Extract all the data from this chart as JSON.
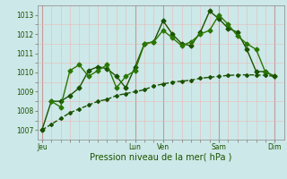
{
  "title": "",
  "xlabel": "Pression niveau de la mer( hPa )",
  "ylim": [
    1006.5,
    1013.5
  ],
  "yticks": [
    1007,
    1008,
    1009,
    1010,
    1011,
    1012,
    1013
  ],
  "bg_color": "#cde8e8",
  "grid_color_minor": "#e8b8b8",
  "grid_color_major": "#c89898",
  "line_color_dark": "#1a5200",
  "line_color_mid": "#2a7700",
  "xtick_labels": [
    "Jeu",
    "Lun",
    "Ven",
    "Sam",
    "Dim"
  ],
  "xtick_positions": [
    0,
    10,
    13,
    19,
    25
  ],
  "xlim": [
    -0.5,
    26.0
  ],
  "x_major_lines": [
    0,
    10,
    13,
    19,
    25
  ],
  "lines": [
    {
      "x": [
        0,
        1,
        2,
        3,
        4,
        5,
        6,
        7,
        8,
        9,
        10,
        11,
        12,
        13,
        14,
        15,
        16,
        17,
        18,
        19,
        20,
        21,
        22,
        23,
        24,
        25
      ],
      "y": [
        1007.0,
        1008.5,
        1008.5,
        1008.8,
        1009.2,
        1010.1,
        1010.3,
        1010.2,
        1009.8,
        1009.2,
        1010.3,
        1011.5,
        1011.6,
        1012.7,
        1012.0,
        1011.5,
        1011.4,
        1012.1,
        1013.2,
        1012.8,
        1012.3,
        1012.1,
        1011.2,
        1010.05,
        1010.05,
        1009.8
      ],
      "color": "#1a5200",
      "lw": 1.0,
      "ls": "-",
      "marker": "D",
      "ms": 2.5
    },
    {
      "x": [
        1,
        2,
        3,
        4,
        5,
        6,
        7,
        8,
        9,
        10,
        11,
        12,
        13,
        14,
        15,
        16,
        17,
        18,
        19,
        20,
        21,
        22,
        23,
        24,
        25
      ],
      "y": [
        1008.5,
        1008.2,
        1010.1,
        1010.4,
        1009.8,
        1010.1,
        1010.4,
        1009.2,
        1009.8,
        1010.1,
        1011.5,
        1011.6,
        1012.2,
        1011.8,
        1011.4,
        1011.6,
        1012.0,
        1012.2,
        1013.0,
        1012.5,
        1011.9,
        1011.5,
        1011.2,
        1010.0,
        1009.8
      ],
      "color": "#2a7700",
      "lw": 1.0,
      "ls": "-",
      "marker": "D",
      "ms": 2.5
    },
    {
      "x": [
        0,
        1,
        2,
        3,
        4,
        5,
        6,
        7,
        8,
        9,
        10,
        11,
        12,
        13,
        14,
        15,
        16,
        17,
        18,
        19,
        20,
        21,
        22,
        23,
        24,
        25
      ],
      "y": [
        1007.0,
        1007.3,
        1007.6,
        1007.9,
        1008.1,
        1008.3,
        1008.5,
        1008.6,
        1008.8,
        1008.9,
        1009.0,
        1009.1,
        1009.3,
        1009.4,
        1009.5,
        1009.55,
        1009.6,
        1009.7,
        1009.75,
        1009.8,
        1009.85,
        1009.87,
        1009.88,
        1009.87,
        1009.85,
        1009.8
      ],
      "color": "#1a5200",
      "lw": 1.0,
      "ls": "--",
      "marker": "D",
      "ms": 2.0
    }
  ]
}
